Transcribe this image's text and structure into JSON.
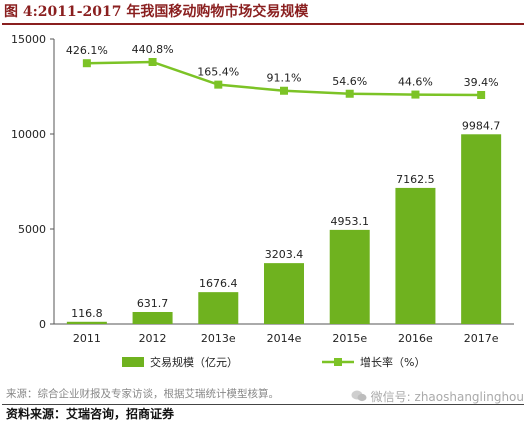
{
  "header": {
    "title": "图 4:2011-2017 年我国移动购物市场交易规模"
  },
  "source_inner": "来源：综合企业财报及专家访谈，根据艾瑞统计模型核算。",
  "watermark": "微信号: zhaoshanglinghou",
  "footer": "资料来源：艾瑞咨询，招商证券",
  "chart_data": {
    "type": "bar",
    "categories": [
      "2011",
      "2012",
      "2013e",
      "2014e",
      "2015e",
      "2016e",
      "2017e"
    ],
    "series": [
      {
        "name": "交易规模（亿元）",
        "type": "bar",
        "values": [
          116.8,
          631.7,
          1676.4,
          3203.4,
          4953.1,
          7162.5,
          9984.7
        ],
        "color": "#6fb21f"
      },
      {
        "name": "增长率（%）",
        "type": "line",
        "values": [
          426.1,
          440.8,
          165.4,
          91.1,
          54.6,
          44.6,
          39.4
        ],
        "color": "#7cc326"
      }
    ],
    "bar_labels": [
      "116.8",
      "631.7",
      "1676.4",
      "3203.4",
      "4953.1",
      "7162.5",
      "9984.7"
    ],
    "line_labels": [
      "426.1%",
      "440.8%",
      "165.4%",
      "91.1%",
      "54.6%",
      "44.6%",
      "39.4%"
    ],
    "y_ticks": [
      "0",
      "5000",
      "10000",
      "15000"
    ],
    "ylim": [
      0,
      15000
    ],
    "legend_position": "bottom"
  }
}
